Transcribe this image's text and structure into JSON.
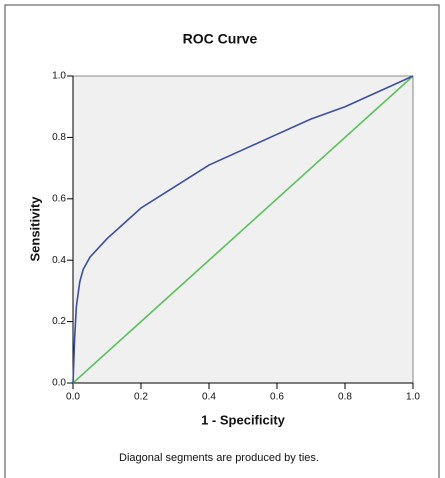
{
  "chart_data": {
    "type": "line",
    "title": "ROC Curve",
    "x_label": "1 - Specificity",
    "y_label": "Sensitivity",
    "footnote": "Diagonal segments are produced by ties.",
    "xlim": [
      0,
      1
    ],
    "ylim": [
      0,
      1
    ],
    "xticks": [
      {
        "value": 0,
        "label": "0.0"
      },
      0.2,
      0.4,
      0.6,
      0.8,
      {
        "value": 1,
        "label": "1.0"
      }
    ],
    "yticks": [
      {
        "value": 0,
        "label": "0.0"
      },
      0.2,
      0.4,
      0.6,
      0.8,
      {
        "value": 1,
        "label": "1.0"
      }
    ],
    "series": [
      {
        "color": "#3b4ea3",
        "x": [
          0,
          0.005,
          0.01,
          0.02,
          0.03,
          0.05,
          0.1,
          0.15,
          0.2,
          0.3,
          0.4,
          0.5,
          0.6,
          0.7,
          0.8,
          0.9,
          1
        ],
        "values": [
          0,
          0.15,
          0.25,
          0.33,
          0.37,
          0.41,
          0.47,
          0.52,
          0.57,
          0.64,
          0.71,
          0.76,
          0.81,
          0.86,
          0.9,
          0.95,
          1
        ]
      },
      {
        "color": "#5cc05c",
        "x": [
          0,
          1
        ],
        "values": [
          0,
          1
        ]
      }
    ]
  }
}
